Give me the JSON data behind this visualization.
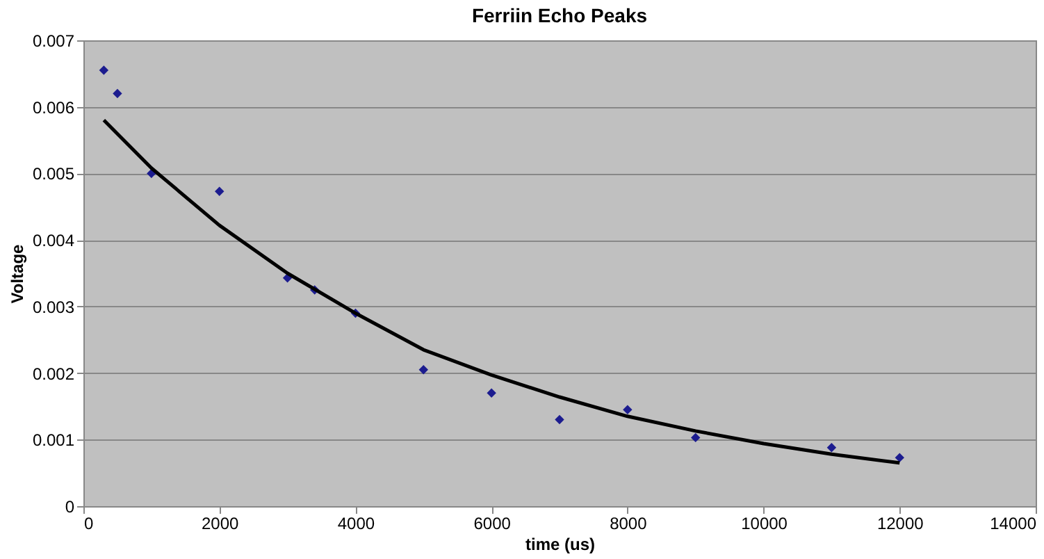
{
  "chart_data": {
    "type": "scatter",
    "title": "Ferriin Echo Peaks",
    "xlabel": "time (us)",
    "ylabel": "Voltage",
    "xlim": [
      0,
      14000
    ],
    "xticks": [
      0,
      2000,
      4000,
      6000,
      8000,
      10000,
      12000,
      14000
    ],
    "ylim": [
      0,
      0.007
    ],
    "yticks": [
      0,
      0.001,
      0.002,
      0.003,
      0.004,
      0.005,
      0.006,
      0.007
    ],
    "grid": "y",
    "series": [
      {
        "color": "#1c1c8f",
        "marker": "diamond",
        "x": [
          300,
          500,
          1000,
          2000,
          3000,
          3400,
          4000,
          5000,
          6000,
          7000,
          8000,
          9000,
          11000,
          12000
        ],
        "values": [
          0.00655,
          0.0062,
          0.005,
          0.00473,
          0.00343,
          0.00325,
          0.0029,
          0.00205,
          0.0017,
          0.0013,
          0.00145,
          0.00103,
          0.00088,
          0.00073
        ]
      },
      {
        "type": "line",
        "marker": "none",
        "color": "#000000",
        "x": [
          300,
          1000,
          2000,
          3000,
          4000,
          5000,
          6000,
          7000,
          8000,
          9000,
          10000,
          11000,
          12000
        ],
        "values": [
          0.0058,
          0.00508,
          0.00422,
          0.0035,
          0.0029,
          0.00235,
          0.00197,
          0.00164,
          0.00135,
          0.00113,
          0.00094,
          0.00078,
          0.00065
        ]
      }
    ]
  }
}
